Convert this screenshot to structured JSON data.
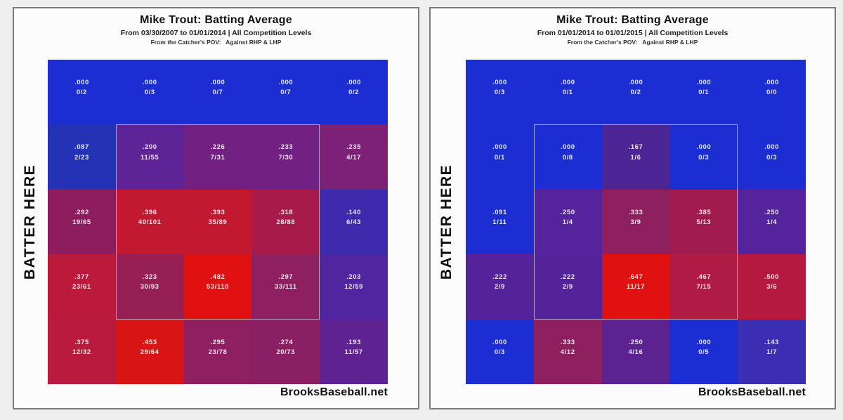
{
  "background_color": "#efefef",
  "cell_text_color": "#ffffff",
  "strike_zone_outline_color": "#cdcbd4",
  "panels": [
    {
      "title": "Mike Trout: Batting Average",
      "subtitle_range": "From 03/30/2007 to 01/01/2014 | All Competition Levels",
      "subtitle_pov": "From the Catcher's POV:   Against RHP & LHP",
      "side_label": "BATTER HERE",
      "watermark": "BrooksBaseball.net",
      "rows": [
        [
          {
            "avg": ".000",
            "count": "0/2",
            "color": "#1c2ed1"
          },
          {
            "avg": ".000",
            "count": "0/3",
            "color": "#1c2ed1"
          },
          {
            "avg": ".000",
            "count": "0/7",
            "color": "#1c2ed1"
          },
          {
            "avg": ".000",
            "count": "0/7",
            "color": "#1c2ed1"
          },
          {
            "avg": ".000",
            "count": "0/2",
            "color": "#1c2ed1"
          }
        ],
        [
          {
            "avg": ".087",
            "count": "2/23",
            "color": "#2432b6"
          },
          {
            "avg": ".200",
            "count": "11/55",
            "color": "#5d2397"
          },
          {
            "avg": ".226",
            "count": "7/31",
            "color": "#722183"
          },
          {
            "avg": ".233",
            "count": "7/30",
            "color": "#722183"
          },
          {
            "avg": ".235",
            "count": "4/17",
            "color": "#7d2077"
          }
        ],
        [
          {
            "avg": ".292",
            "count": "19/65",
            "color": "#8e1d60"
          },
          {
            "avg": ".396",
            "count": "40/101",
            "color": "#c21931"
          },
          {
            "avg": ".393",
            "count": "35/89",
            "color": "#c21931"
          },
          {
            "avg": ".318",
            "count": "28/88",
            "color": "#a61b4a"
          },
          {
            "avg": ".140",
            "count": "6/43",
            "color": "#3f2aad"
          }
        ],
        [
          {
            "avg": ".377",
            "count": "23/61",
            "color": "#bc1a3a"
          },
          {
            "avg": ".323",
            "count": "30/93",
            "color": "#962055"
          },
          {
            "avg": ".482",
            "count": "53/110",
            "color": "#e01111"
          },
          {
            "avg": ".297",
            "count": "33/111",
            "color": "#8e2060"
          },
          {
            "avg": ".203",
            "count": "12/59",
            "color": "#5124a0"
          }
        ],
        [
          {
            "avg": ".375",
            "count": "12/32",
            "color": "#b81b3e"
          },
          {
            "avg": ".453",
            "count": "29/64",
            "color": "#d91414"
          },
          {
            "avg": ".295",
            "count": "23/78",
            "color": "#8e1f60"
          },
          {
            "avg": ".274",
            "count": "20/73",
            "color": "#8a2063"
          },
          {
            "avg": ".193",
            "count": "11/57",
            "color": "#5e2391"
          }
        ]
      ]
    },
    {
      "title": "Mike Trout: Batting Average",
      "subtitle_range": "From 01/01/2014 to 01/01/2015 | All Competition Levels",
      "subtitle_pov": "From the Catcher's POV:   Against RHP & LHP",
      "side_label": "BATTER HERE",
      "watermark": "BrooksBaseball.net",
      "rows": [
        [
          {
            "avg": ".000",
            "count": "0/3",
            "color": "#1c2ed1"
          },
          {
            "avg": ".000",
            "count": "0/1",
            "color": "#1c2ed1"
          },
          {
            "avg": ".000",
            "count": "0/2",
            "color": "#1c2ed1"
          },
          {
            "avg": ".000",
            "count": "0/1",
            "color": "#1c2ed1"
          },
          {
            "avg": ".000",
            "count": "0/0",
            "color": "#1c2ed1"
          }
        ],
        [
          {
            "avg": ".000",
            "count": "0/1",
            "color": "#1c2ed1"
          },
          {
            "avg": ".000",
            "count": "0/8",
            "color": "#1c2ed1"
          },
          {
            "avg": ".167",
            "count": "1/6",
            "color": "#4b2694"
          },
          {
            "avg": ".000",
            "count": "0/3",
            "color": "#1c2ed1"
          },
          {
            "avg": ".000",
            "count": "0/3",
            "color": "#1c2ed1"
          }
        ],
        [
          {
            "avg": ".091",
            "count": "1/11",
            "color": "#1c2ed1"
          },
          {
            "avg": ".250",
            "count": "1/4",
            "color": "#55239b"
          },
          {
            "avg": ".333",
            "count": "3/9",
            "color": "#8e2060"
          },
          {
            "avg": ".385",
            "count": "5/13",
            "color": "#a21b4e"
          },
          {
            "avg": ".250",
            "count": "1/4",
            "color": "#55239b"
          }
        ],
        [
          {
            "avg": ".222",
            "count": "2/9",
            "color": "#542399"
          },
          {
            "avg": ".222",
            "count": "2/9",
            "color": "#542399"
          },
          {
            "avg": ".647",
            "count": "11/17",
            "color": "#e01111"
          },
          {
            "avg": ".467",
            "count": "7/15",
            "color": "#b01b44"
          },
          {
            "avg": ".500",
            "count": "3/6",
            "color": "#b5193f"
          }
        ],
        [
          {
            "avg": ".000",
            "count": "0/3",
            "color": "#1c2ed1"
          },
          {
            "avg": ".333",
            "count": "4/12",
            "color": "#8e2060"
          },
          {
            "avg": ".250",
            "count": "4/16",
            "color": "#5c2390"
          },
          {
            "avg": ".000",
            "count": "0/5",
            "color": "#1c2ed1"
          },
          {
            "avg": ".143",
            "count": "1/7",
            "color": "#3a2eb2"
          }
        ]
      ]
    }
  ],
  "chart_data": [
    {
      "type": "heatmap",
      "title": "Mike Trout: Batting Average",
      "subtitle": "From 03/30/2007 to 01/01/2014 | All Competition Levels",
      "note": "From the Catcher's POV: Against RHP & LHP",
      "ylabel": "BATTER HERE",
      "source": "BrooksBaseball.net",
      "rows": 5,
      "cols": 5,
      "values": [
        [
          0.0,
          0.0,
          0.0,
          0.0,
          0.0
        ],
        [
          0.087,
          0.2,
          0.226,
          0.233,
          0.235
        ],
        [
          0.292,
          0.396,
          0.393,
          0.318,
          0.14
        ],
        [
          0.377,
          0.323,
          0.482,
          0.297,
          0.203
        ],
        [
          0.375,
          0.453,
          0.295,
          0.274,
          0.193
        ]
      ],
      "labels": [
        [
          "0/2",
          "0/3",
          "0/7",
          "0/7",
          "0/2"
        ],
        [
          "2/23",
          "11/55",
          "7/31",
          "7/30",
          "4/17"
        ],
        [
          "19/65",
          "40/101",
          "35/89",
          "28/88",
          "6/43"
        ],
        [
          "23/61",
          "30/93",
          "53/110",
          "33/111",
          "12/59"
        ],
        [
          "12/32",
          "29/64",
          "23/78",
          "20/73",
          "11/57"
        ]
      ],
      "strike_zone": "columns 2-4, rows 2-4 outlined"
    },
    {
      "type": "heatmap",
      "title": "Mike Trout: Batting Average",
      "subtitle": "From 01/01/2014 to 01/01/2015 | All Competition Levels",
      "note": "From the Catcher's POV: Against RHP & LHP",
      "ylabel": "BATTER HERE",
      "source": "BrooksBaseball.net",
      "rows": 5,
      "cols": 5,
      "values": [
        [
          0.0,
          0.0,
          0.0,
          0.0,
          0.0
        ],
        [
          0.0,
          0.0,
          0.167,
          0.0,
          0.0
        ],
        [
          0.091,
          0.25,
          0.333,
          0.385,
          0.25
        ],
        [
          0.222,
          0.222,
          0.647,
          0.467,
          0.5
        ],
        [
          0.0,
          0.333,
          0.25,
          0.0,
          0.143
        ]
      ],
      "labels": [
        [
          "0/3",
          "0/1",
          "0/2",
          "0/1",
          "0/0"
        ],
        [
          "0/1",
          "0/8",
          "1/6",
          "0/3",
          "0/3"
        ],
        [
          "1/11",
          "1/4",
          "3/9",
          "5/13",
          "1/4"
        ],
        [
          "2/9",
          "2/9",
          "11/17",
          "7/15",
          "3/6"
        ],
        [
          "0/3",
          "4/12",
          "4/16",
          "0/5",
          "1/7"
        ]
      ],
      "strike_zone": "columns 2-4, rows 2-4 outlined"
    }
  ]
}
